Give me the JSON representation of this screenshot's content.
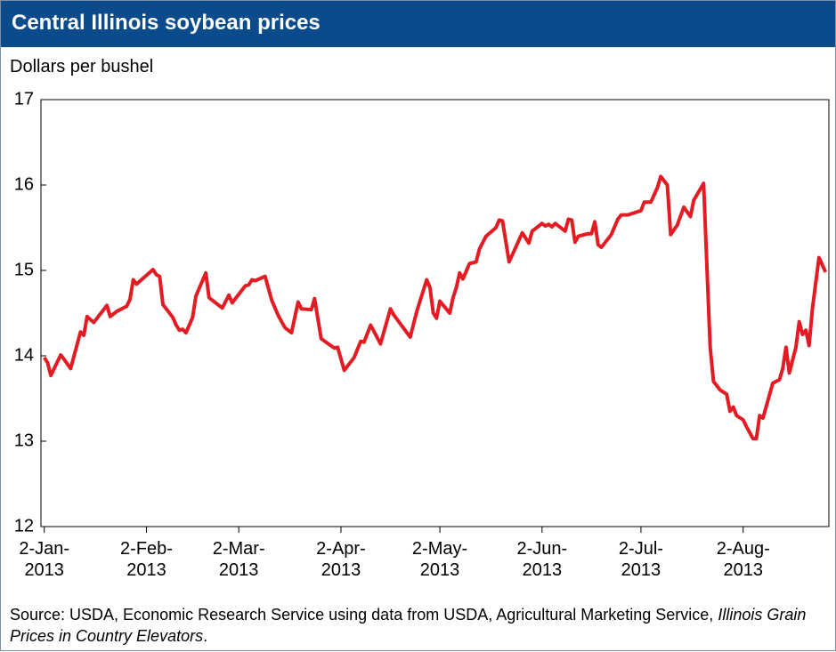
{
  "chart_data": {
    "type": "line",
    "title": "Central Illinois soybean prices",
    "y_label": "Dollars per bushel",
    "source": {
      "text": "Source: USDA, Economic Research Service using data from USDA, Agricultural Marketing Service,",
      "italic": "Illinois Grain Prices in Country Elevators",
      "end": "."
    },
    "xlim": [
      "2013-01-01",
      "2013-08-28"
    ],
    "xticks": [
      {
        "value": "2013-01-02",
        "label": "2-Jan-\n2013"
      },
      {
        "value": "2013-02-02",
        "label": "2-Feb-\n2013"
      },
      {
        "value": "2013-03-02",
        "label": "2-Mar-\n2013"
      },
      {
        "value": "2013-04-02",
        "label": "2-Apr-\n2013"
      },
      {
        "value": "2013-05-02",
        "label": "2-May-\n2013"
      },
      {
        "value": "2013-06-02",
        "label": "2-Jun-\n2013"
      },
      {
        "value": "2013-07-02",
        "label": "2-Jul-\n2013"
      },
      {
        "value": "2013-08-02",
        "label": "2-Aug-\n2013"
      }
    ],
    "ylim": [
      12,
      17
    ],
    "yticks": [
      12,
      13,
      14,
      15,
      16,
      17
    ],
    "grid": false,
    "x": [
      "2013-01-02",
      "2013-01-03",
      "2013-01-04",
      "2013-01-07",
      "2013-01-08",
      "2013-01-10",
      "2013-01-13",
      "2013-01-14",
      "2013-01-15",
      "2013-01-17",
      "2013-01-21",
      "2013-01-22",
      "2013-01-24",
      "2013-01-27",
      "2013-01-28",
      "2013-01-29",
      "2013-01-30",
      "2013-02-04",
      "2013-02-05",
      "2013-02-06",
      "2013-02-07",
      "2013-02-10",
      "2013-02-11",
      "2013-02-12",
      "2013-02-13",
      "2013-02-14",
      "2013-02-16",
      "2013-02-17",
      "2013-02-20",
      "2013-02-21",
      "2013-02-25",
      "2013-02-27",
      "2013-02-28",
      "2013-03-04",
      "2013-03-05",
      "2013-03-06",
      "2013-03-07",
      "2013-03-10",
      "2013-03-12",
      "2013-03-14",
      "2013-03-16",
      "2013-03-18",
      "2013-03-20",
      "2013-03-21",
      "2013-03-24",
      "2013-03-25",
      "2013-03-27",
      "2013-03-31",
      "2013-04-01",
      "2013-04-03",
      "2013-04-06",
      "2013-04-08",
      "2013-04-09",
      "2013-04-11",
      "2013-04-14",
      "2013-04-17",
      "2013-04-18",
      "2013-04-23",
      "2013-04-25",
      "2013-04-28",
      "2013-04-29",
      "2013-04-30",
      "2013-05-01",
      "2013-05-02",
      "2013-05-05",
      "2013-05-06",
      "2013-05-07",
      "2013-05-08",
      "2013-05-09",
      "2013-05-11",
      "2013-05-13",
      "2013-05-14",
      "2013-05-16",
      "2013-05-19",
      "2013-05-20",
      "2013-05-21",
      "2013-05-23",
      "2013-05-25",
      "2013-05-27",
      "2013-05-29",
      "2013-05-30",
      "2013-06-02",
      "2013-06-03",
      "2013-06-04",
      "2013-06-05",
      "2013-06-06",
      "2013-06-09",
      "2013-06-10",
      "2013-06-11",
      "2013-06-12",
      "2013-06-13",
      "2013-06-16",
      "2013-06-17",
      "2013-06-18",
      "2013-06-19",
      "2013-06-20",
      "2013-06-23",
      "2013-06-25",
      "2013-06-26",
      "2013-06-28",
      "2013-07-02",
      "2013-07-03",
      "2013-07-05",
      "2013-07-07",
      "2013-07-08",
      "2013-07-10",
      "2013-07-11",
      "2013-07-13",
      "2013-07-15",
      "2013-07-17",
      "2013-07-18",
      "2013-07-21",
      "2013-07-22",
      "2013-07-23",
      "2013-07-24",
      "2013-07-26",
      "2013-07-28",
      "2013-07-29",
      "2013-07-30",
      "2013-07-31",
      "2013-08-02",
      "2013-08-03",
      "2013-08-05",
      "2013-08-06",
      "2013-08-07",
      "2013-08-08",
      "2013-08-11",
      "2013-08-13",
      "2013-08-14",
      "2013-08-15",
      "2013-08-16",
      "2013-08-18",
      "2013-08-19",
      "2013-08-20",
      "2013-08-21",
      "2013-08-22",
      "2013-08-23",
      "2013-08-24",
      "2013-08-25",
      "2013-08-27"
    ],
    "series": [
      {
        "color": "#e31b23",
        "values": [
          13.98,
          13.92,
          13.77,
          14.01,
          13.96,
          13.85,
          14.28,
          14.24,
          14.46,
          14.39,
          14.59,
          14.46,
          14.52,
          14.58,
          14.66,
          14.89,
          14.84,
          15.01,
          14.95,
          14.93,
          14.6,
          14.45,
          14.36,
          14.3,
          14.31,
          14.27,
          14.45,
          14.7,
          14.97,
          14.68,
          14.56,
          14.71,
          14.62,
          14.82,
          14.83,
          14.89,
          14.88,
          14.93,
          14.65,
          14.47,
          14.33,
          14.27,
          14.63,
          14.55,
          14.54,
          14.67,
          14.2,
          14.09,
          14.1,
          13.83,
          13.98,
          14.17,
          14.16,
          14.36,
          14.14,
          14.55,
          14.48,
          14.22,
          14.52,
          14.89,
          14.8,
          14.5,
          14.44,
          14.64,
          14.5,
          14.68,
          14.8,
          14.97,
          14.9,
          15.08,
          15.1,
          15.25,
          15.4,
          15.5,
          15.59,
          15.58,
          15.1,
          15.27,
          15.44,
          15.32,
          15.46,
          15.55,
          15.52,
          15.54,
          15.51,
          15.55,
          15.46,
          15.6,
          15.59,
          15.33,
          15.4,
          15.43,
          15.43,
          15.57,
          15.3,
          15.27,
          15.42,
          15.6,
          15.65,
          15.65,
          15.7,
          15.8,
          15.8,
          15.97,
          16.1,
          16.0,
          15.42,
          15.53,
          15.74,
          15.63,
          15.82,
          16.02,
          15.05,
          14.1,
          13.7,
          13.6,
          13.55,
          13.35,
          13.4,
          13.3,
          13.25,
          13.17,
          13.03,
          13.03,
          13.3,
          13.27,
          13.68,
          13.72,
          13.85,
          14.1,
          13.8,
          14.1,
          14.4,
          14.25,
          14.3,
          14.12,
          14.55,
          14.85,
          15.15,
          14.98
        ]
      }
    ]
  }
}
